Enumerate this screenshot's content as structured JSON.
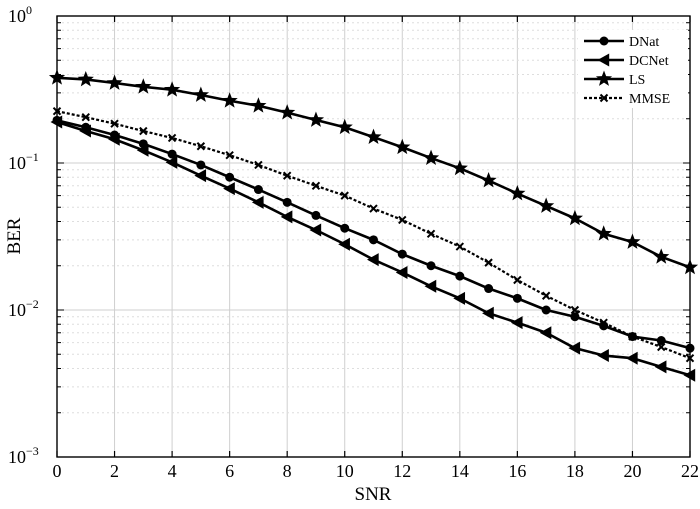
{
  "chart_data": {
    "type": "line",
    "xlabel": "SNR",
    "ylabel": "BER",
    "xlim": [
      0,
      22
    ],
    "ylim": [
      0.001,
      1
    ],
    "yscale": "log",
    "grid": true,
    "legend_position": "top-right",
    "x": [
      0,
      1,
      2,
      3,
      4,
      5,
      6,
      7,
      8,
      9,
      10,
      11,
      12,
      13,
      14,
      15,
      16,
      17,
      18,
      19,
      20,
      21,
      22
    ],
    "x_ticks": [
      "0",
      "2",
      "4",
      "6",
      "8",
      "10",
      "12",
      "14",
      "16",
      "18",
      "20",
      "22"
    ],
    "y_ticks": [
      {
        "base": "10",
        "exp": "0"
      },
      {
        "base": "10",
        "exp": "−1"
      },
      {
        "base": "10",
        "exp": "−2"
      },
      {
        "base": "10",
        "exp": "−3"
      }
    ],
    "series": [
      {
        "name": "DNat",
        "marker": "circle",
        "line": "solid",
        "values": [
          0.195,
          0.175,
          0.155,
          0.135,
          0.115,
          0.097,
          0.08,
          0.066,
          0.054,
          0.044,
          0.036,
          0.03,
          0.024,
          0.02,
          0.017,
          0.014,
          0.012,
          0.01,
          0.009,
          0.0078,
          0.0066,
          0.0062,
          0.0055
        ]
      },
      {
        "name": "DCNet",
        "marker": "triangle-left",
        "line": "solid",
        "values": [
          0.19,
          0.165,
          0.145,
          0.122,
          0.101,
          0.082,
          0.067,
          0.054,
          0.043,
          0.035,
          0.028,
          0.022,
          0.018,
          0.0145,
          0.012,
          0.0095,
          0.0082,
          0.007,
          0.0055,
          0.0049,
          0.0047,
          0.0041,
          0.0036
        ]
      },
      {
        "name": "LS",
        "marker": "star",
        "line": "solid",
        "values": [
          0.38,
          0.37,
          0.35,
          0.33,
          0.315,
          0.29,
          0.265,
          0.245,
          0.22,
          0.196,
          0.175,
          0.15,
          0.128,
          0.108,
          0.092,
          0.076,
          0.062,
          0.051,
          0.042,
          0.033,
          0.029,
          0.023,
          0.0195
        ]
      },
      {
        "name": "MMSE",
        "marker": "x",
        "line": "dotted",
        "values": [
          0.225,
          0.205,
          0.185,
          0.165,
          0.148,
          0.13,
          0.113,
          0.097,
          0.082,
          0.07,
          0.06,
          0.049,
          0.041,
          0.033,
          0.027,
          0.021,
          0.016,
          0.0125,
          0.01,
          0.0082,
          0.0066,
          0.0056,
          0.0047
        ]
      }
    ]
  }
}
